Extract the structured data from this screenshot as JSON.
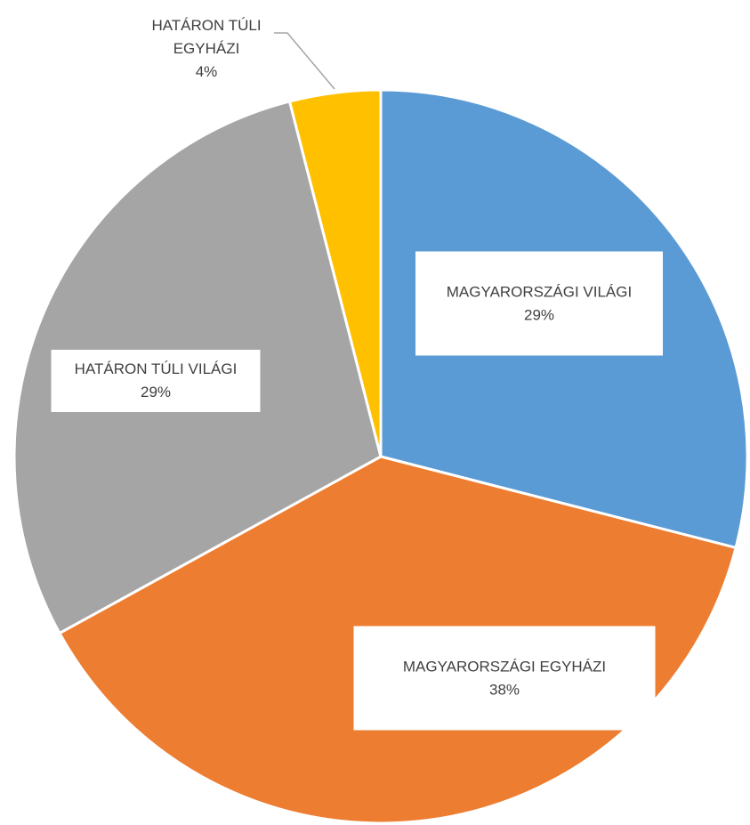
{
  "chart_data": {
    "type": "pie",
    "categories": [
      "MAGYARORSZÁGI VILÁGI",
      "MAGYARORSZÁGI EGYHÁZI",
      "HATÁRON TÚLI VILÁGI",
      "HATÁRON TÚLI EGYHÁZI"
    ],
    "values": [
      29,
      38,
      29,
      4
    ],
    "value_labels": [
      "29%",
      "38%",
      "29%",
      "4%"
    ],
    "colors": [
      "#5b9bd5",
      "#ed7d31",
      "#a5a5a5",
      "#ffc000"
    ]
  }
}
